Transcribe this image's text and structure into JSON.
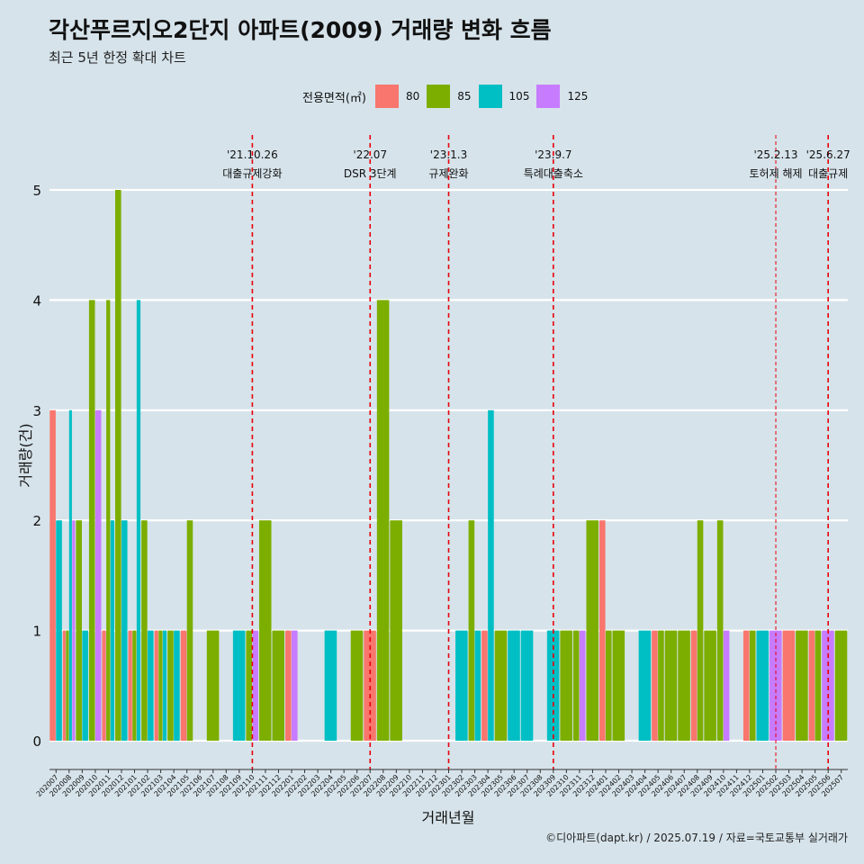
{
  "title": "각산푸르지오2단지 아파트(2009) 거래량 변화 흐름",
  "subtitle": "최근 5년 한정 확대 차트",
  "caption": "©디아파트(dapt.kr) / 2025.07.19 / 자료=국토교통부 실거래가",
  "legend": {
    "title": "전용면적(㎡)",
    "items": [
      {
        "label": "80",
        "color": "#f8766d"
      },
      {
        "label": "85",
        "color": "#7cae00"
      },
      {
        "label": "105",
        "color": "#00bfc4"
      },
      {
        "label": "125",
        "color": "#c77cff"
      }
    ]
  },
  "annotations": [
    {
      "date": "'21.10.26",
      "text": "대출규제강화",
      "month": "202110",
      "style": "dashed"
    },
    {
      "date": "'22.07",
      "text": "DSR 3단계",
      "month": "202207",
      "style": "dashed"
    },
    {
      "date": "'23.1.3",
      "text": "규제완화",
      "month": "202301",
      "style": "dashed"
    },
    {
      "date": "'23.9.7",
      "text": "특례대출축소",
      "month": "202309",
      "style": "dashed"
    },
    {
      "date": "'25.2.13",
      "text": "토허제 해제",
      "month": "202502",
      "style": "thin"
    },
    {
      "date": "'25.6.27",
      "text": "대출규제",
      "month": "202506",
      "style": "dashed"
    }
  ],
  "chart_data": {
    "type": "bar",
    "xlabel": "거래년월",
    "ylabel": "거래량(건)",
    "ylim": [
      0,
      5
    ],
    "yticks": [
      0,
      1,
      2,
      3,
      4,
      5
    ],
    "grid": true,
    "categories": [
      "202007",
      "202008",
      "202009",
      "202010",
      "202011",
      "202012",
      "202101",
      "202102",
      "202103",
      "202104",
      "202105",
      "202106",
      "202107",
      "202108",
      "202109",
      "202110",
      "202111",
      "202112",
      "202201",
      "202202",
      "202203",
      "202204",
      "202205",
      "202206",
      "202207",
      "202208",
      "202209",
      "202210",
      "202211",
      "202212",
      "202301",
      "202302",
      "202303",
      "202304",
      "202305",
      "202306",
      "202307",
      "202308",
      "202309",
      "202310",
      "202311",
      "202312",
      "202401",
      "202402",
      "202403",
      "202404",
      "202405",
      "202406",
      "202407",
      "202408",
      "202409",
      "202410",
      "202411",
      "202412",
      "202501",
      "202502",
      "202503",
      "202504",
      "202505",
      "202506",
      "202507"
    ],
    "series": [
      {
        "name": "80",
        "values": [
          3,
          1,
          0,
          0,
          1,
          0,
          1,
          0,
          1,
          0,
          1,
          0,
          0,
          0,
          0,
          0,
          0,
          0,
          1,
          0,
          0,
          0,
          0,
          0,
          1,
          0,
          0,
          0,
          0,
          0,
          0,
          0,
          0,
          1,
          0,
          0,
          0,
          0,
          0,
          0,
          0,
          0,
          2,
          0,
          0,
          0,
          1,
          0,
          0,
          1,
          0,
          0,
          0,
          1,
          0,
          0,
          1,
          0,
          1,
          0,
          0
        ]
      },
      {
        "name": "85",
        "values": [
          0,
          1,
          2,
          4,
          4,
          5,
          1,
          2,
          1,
          1,
          2,
          0,
          1,
          0,
          0,
          1,
          2,
          1,
          0,
          0,
          0,
          0,
          0,
          1,
          0,
          4,
          2,
          0,
          0,
          0,
          0,
          0,
          2,
          0,
          1,
          0,
          0,
          0,
          0,
          1,
          1,
          2,
          1,
          1,
          0,
          0,
          1,
          1,
          1,
          2,
          1,
          2,
          0,
          1,
          0,
          0,
          0,
          1,
          1,
          0,
          1
        ]
      },
      {
        "name": "105",
        "values": [
          2,
          3,
          1,
          0,
          2,
          2,
          4,
          1,
          1,
          1,
          0,
          0,
          0,
          0,
          1,
          0,
          0,
          0,
          0,
          0,
          0,
          1,
          0,
          0,
          0,
          0,
          0,
          0,
          0,
          0,
          0,
          1,
          1,
          3,
          0,
          1,
          1,
          0,
          1,
          0,
          0,
          0,
          0,
          0,
          0,
          1,
          0,
          0,
          0,
          0,
          0,
          0,
          0,
          0,
          1,
          0,
          0,
          0,
          0,
          0,
          0
        ]
      },
      {
        "name": "125",
        "values": [
          0,
          2,
          0,
          3,
          0,
          0,
          0,
          0,
          0,
          0,
          0,
          0,
          0,
          0,
          0,
          1,
          0,
          0,
          1,
          0,
          0,
          0,
          0,
          0,
          0,
          0,
          0,
          0,
          0,
          0,
          0,
          0,
          0,
          0,
          0,
          0,
          0,
          0,
          0,
          0,
          1,
          0,
          0,
          0,
          0,
          0,
          0,
          0,
          0,
          0,
          0,
          1,
          0,
          0,
          0,
          1,
          0,
          0,
          0,
          1,
          0
        ]
      }
    ]
  }
}
